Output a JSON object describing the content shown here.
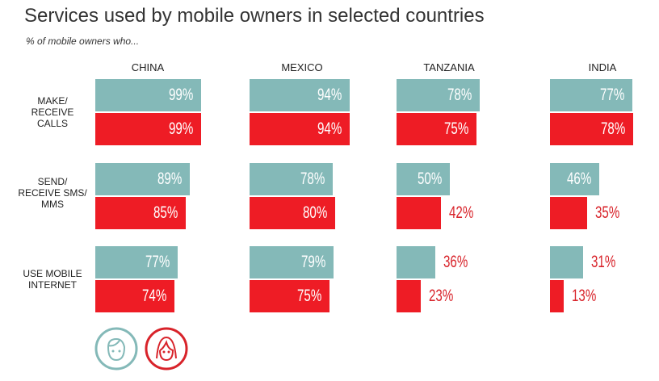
{
  "chart_data": {
    "type": "bar",
    "title": "Services used by mobile owners in selected countries",
    "subtitle": "% of mobile owners who...",
    "countries": [
      "CHINA",
      "MEXICO",
      "TANZANIA",
      "INDIA"
    ],
    "services": [
      "MAKE/ RECEIVE CALLS",
      "SEND/ RECEIVE SMS/ MMS",
      "USE MOBILE INTERNET"
    ],
    "series": [
      {
        "name": "Men",
        "icon": "man-face-icon",
        "color": "#84b9b8",
        "values": [
          [
            99,
            94,
            78,
            77
          ],
          [
            89,
            78,
            50,
            46
          ],
          [
            77,
            79,
            36,
            31
          ]
        ]
      },
      {
        "name": "Women",
        "icon": "woman-face-icon",
        "color": "#ee1c25",
        "values": [
          [
            99,
            94,
            75,
            78
          ],
          [
            85,
            80,
            42,
            35
          ],
          [
            74,
            75,
            23,
            13
          ]
        ]
      }
    ],
    "xlim": [
      0,
      100
    ],
    "unit": "%"
  }
}
